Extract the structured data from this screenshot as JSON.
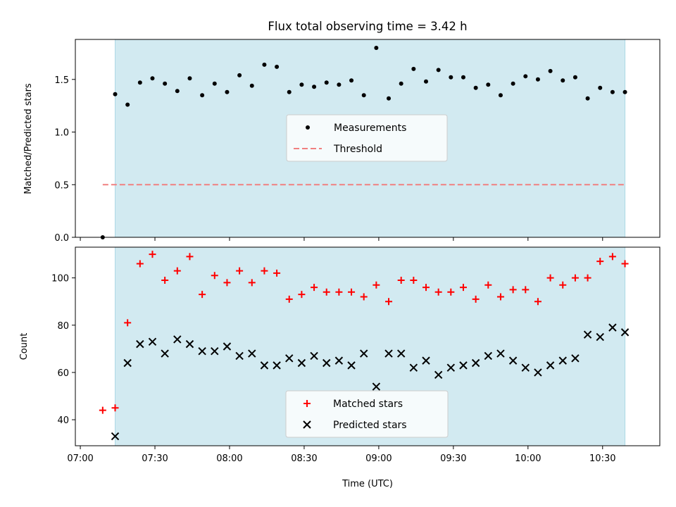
{
  "title": "Flux total observing time = 3.42 h",
  "colors": {
    "band": "#add8e6",
    "measurement": "#000000",
    "threshold": "#f08080",
    "matched": "#ff0000",
    "predicted": "#000000"
  },
  "chart_data": [
    {
      "type": "scatter",
      "ylabel": "Matched/Predicted stars",
      "ylim": [
        0,
        1.88
      ],
      "xlim": [
        "06:58",
        "10:53"
      ],
      "yticks": [
        "0.0",
        "0.5",
        "1.0",
        "1.5"
      ],
      "shaded_interval": [
        "07:14",
        "10:39"
      ],
      "legend": {
        "placement": "center",
        "entries": [
          "Measurements",
          "Threshold"
        ]
      },
      "threshold": {
        "value": 0.5,
        "x_range": [
          "07:09",
          "10:39"
        ]
      },
      "series": [
        {
          "name": "Measurements",
          "x": [
            "07:09",
            "07:14",
            "07:19",
            "07:24",
            "07:29",
            "07:34",
            "07:39",
            "07:44",
            "07:49",
            "07:54",
            "07:59",
            "08:04",
            "08:09",
            "08:14",
            "08:19",
            "08:24",
            "08:29",
            "08:34",
            "08:39",
            "08:44",
            "08:49",
            "08:54",
            "08:59",
            "09:04",
            "09:09",
            "09:14",
            "09:19",
            "09:24",
            "09:29",
            "09:34",
            "09:39",
            "09:44",
            "09:49",
            "09:54",
            "09:59",
            "10:04",
            "10:09",
            "10:14",
            "10:19",
            "10:24",
            "10:29",
            "10:34",
            "10:39"
          ],
          "y": [
            0.0,
            1.36,
            1.26,
            1.47,
            1.51,
            1.46,
            1.39,
            1.51,
            1.35,
            1.46,
            1.38,
            1.54,
            1.44,
            1.64,
            1.62,
            1.38,
            1.45,
            1.43,
            1.47,
            1.45,
            1.49,
            1.35,
            1.8,
            1.32,
            1.46,
            1.6,
            1.48,
            1.59,
            1.52,
            1.52,
            1.42,
            1.45,
            1.35,
            1.46,
            1.53,
            1.5,
            1.58,
            1.49,
            1.52,
            1.32,
            1.42,
            1.38,
            1.38
          ]
        }
      ]
    },
    {
      "type": "scatter",
      "ylabel": "Count",
      "xlabel": "Time (UTC)",
      "ylim": [
        29,
        113
      ],
      "xlim": [
        "06:58",
        "10:53"
      ],
      "yticks": [
        "40",
        "60",
        "80",
        "100"
      ],
      "xticks": [
        "07:00",
        "07:30",
        "08:00",
        "08:30",
        "09:00",
        "09:30",
        "10:00",
        "10:30"
      ],
      "shaded_interval": [
        "07:14",
        "10:39"
      ],
      "legend": {
        "placement": "lower center",
        "entries": [
          "Matched stars",
          "Predicted stars"
        ]
      },
      "series": [
        {
          "name": "Matched stars",
          "x": [
            "07:09",
            "07:14",
            "07:19",
            "07:24",
            "07:29",
            "07:34",
            "07:39",
            "07:44",
            "07:49",
            "07:54",
            "07:59",
            "08:04",
            "08:09",
            "08:14",
            "08:19",
            "08:24",
            "08:29",
            "08:34",
            "08:39",
            "08:44",
            "08:49",
            "08:54",
            "08:59",
            "09:04",
            "09:09",
            "09:14",
            "09:19",
            "09:24",
            "09:29",
            "09:34",
            "09:39",
            "09:44",
            "09:49",
            "09:54",
            "09:59",
            "10:04",
            "10:09",
            "10:14",
            "10:19",
            "10:24",
            "10:29",
            "10:34",
            "10:39"
          ],
          "y": [
            44,
            45,
            81,
            106,
            110,
            99,
            103,
            109,
            93,
            101,
            98,
            103,
            98,
            103,
            102,
            91,
            93,
            96,
            94,
            94,
            94,
            92,
            97,
            90,
            99,
            99,
            96,
            94,
            94,
            96,
            91,
            97,
            92,
            95,
            95,
            90,
            100,
            97,
            100,
            100,
            107,
            109,
            106
          ]
        },
        {
          "name": "Predicted stars",
          "x": [
            "07:09",
            "07:14",
            "07:19",
            "07:24",
            "07:29",
            "07:34",
            "07:39",
            "07:44",
            "07:49",
            "07:54",
            "07:59",
            "08:04",
            "08:09",
            "08:14",
            "08:19",
            "08:24",
            "08:29",
            "08:34",
            "08:39",
            "08:44",
            "08:49",
            "08:54",
            "08:59",
            "09:04",
            "09:09",
            "09:14",
            "09:19",
            "09:24",
            "09:29",
            "09:34",
            "09:39",
            "09:44",
            "09:49",
            "09:54",
            "09:59",
            "10:04",
            "10:09",
            "10:14",
            "10:19",
            "10:24",
            "10:29",
            "10:34",
            "10:39"
          ],
          "y": [
            null,
            33,
            64,
            72,
            73,
            68,
            74,
            72,
            69,
            69,
            71,
            67,
            68,
            63,
            63,
            66,
            64,
            67,
            64,
            65,
            63,
            68,
            54,
            68,
            68,
            62,
            65,
            59,
            62,
            63,
            64,
            67,
            68,
            65,
            62,
            60,
            63,
            65,
            66,
            76,
            75,
            79,
            77
          ]
        }
      ]
    }
  ]
}
